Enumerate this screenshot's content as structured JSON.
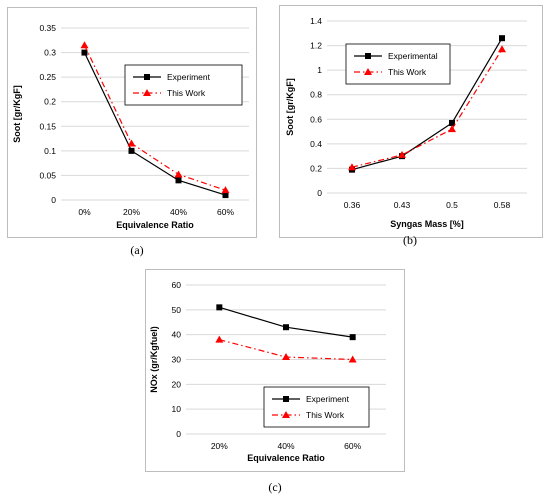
{
  "charts": [
    {
      "id": "a",
      "caption": "(a)",
      "type": "line",
      "xlabel": "Equivalence Ratio",
      "ylabel": "Soot [gr/KgF]",
      "categories": [
        "0%",
        "20%",
        "40%",
        "60%"
      ],
      "ylim": [
        0,
        0.35
      ],
      "yticks": [
        "0",
        "0.05",
        "0.1",
        "0.15",
        "0.2",
        "0.25",
        "0.3",
        "0.35"
      ],
      "grid": "horizontal",
      "legend_position": "center-right",
      "series": [
        {
          "name": "Experiment",
          "values": [
            0.3,
            0.1,
            0.04,
            0.01
          ],
          "color": "#000000",
          "marker": "square",
          "dash": "solid"
        },
        {
          "name": "This Work",
          "values": [
            0.315,
            0.115,
            0.052,
            0.02
          ],
          "color": "#ff0000",
          "marker": "triangle",
          "dash": "dashdot"
        }
      ]
    },
    {
      "id": "b",
      "caption": "(b)",
      "type": "line",
      "xlabel": "Syngas Mass [%]",
      "ylabel": "Soot [gr/KgF]",
      "categories": [
        "0.36",
        "0.43",
        "0.5",
        "0.58"
      ],
      "ylim": [
        0,
        1.4
      ],
      "yticks": [
        "0",
        "0.2",
        "0.4",
        "0.6",
        "0.8",
        "1",
        "1.2",
        "1.4"
      ],
      "grid": "horizontal",
      "legend_position": "top-left",
      "series": [
        {
          "name": "Experimental",
          "values": [
            0.19,
            0.3,
            0.57,
            1.26
          ],
          "color": "#000000",
          "marker": "square",
          "dash": "solid"
        },
        {
          "name": "This Work",
          "values": [
            0.21,
            0.31,
            0.52,
            1.17
          ],
          "color": "#ff0000",
          "marker": "triangle",
          "dash": "dashdot"
        }
      ]
    },
    {
      "id": "c",
      "caption": "(c)",
      "type": "line",
      "xlabel": "Equivalence Ratio",
      "ylabel": "NOx (gr/Kgfuel)",
      "categories": [
        "20%",
        "40%",
        "60%"
      ],
      "ylim": [
        0,
        60
      ],
      "yticks": [
        "0",
        "10",
        "20",
        "30",
        "40",
        "50",
        "60"
      ],
      "grid": "horizontal",
      "legend_position": "bottom-right",
      "series": [
        {
          "name": "Experiment",
          "values": [
            51,
            43,
            39
          ],
          "color": "#000000",
          "marker": "square",
          "dash": "solid"
        },
        {
          "name": "This Work",
          "values": [
            38,
            31,
            30
          ],
          "color": "#ff0000",
          "marker": "triangle",
          "dash": "dashdot"
        }
      ]
    }
  ]
}
